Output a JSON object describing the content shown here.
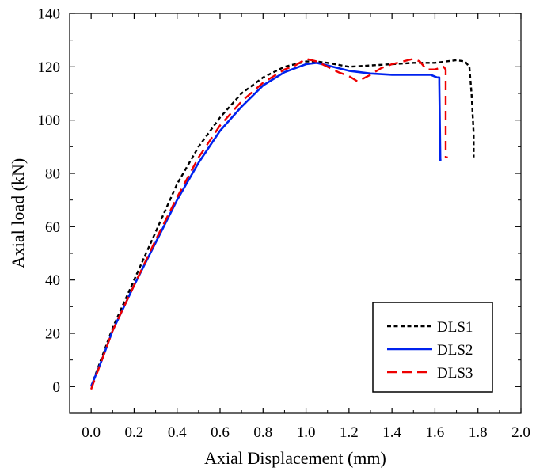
{
  "chart_data": {
    "type": "line",
    "title": "",
    "xlabel": "Axial Displacement (mm)",
    "ylabel": "Axial load (kN)",
    "xlim": [
      -0.1,
      2.0
    ],
    "ylim": [
      -10,
      140
    ],
    "x_ticks": [
      "0.0",
      "0.2",
      "0.4",
      "0.6",
      "0.8",
      "1.0",
      "1.2",
      "1.4",
      "1.6",
      "1.8",
      "2.0"
    ],
    "y_ticks": [
      "0",
      "20",
      "40",
      "60",
      "80",
      "100",
      "120",
      "140"
    ],
    "grid": false,
    "legend_position": "bottom-right",
    "series": [
      {
        "name": "DLS1",
        "color": "#000000",
        "dash": "short-dash",
        "x": [
          0.0,
          0.05,
          0.1,
          0.2,
          0.3,
          0.4,
          0.5,
          0.6,
          0.7,
          0.8,
          0.9,
          1.0,
          1.05,
          1.1,
          1.2,
          1.3,
          1.4,
          1.5,
          1.6,
          1.7,
          1.74,
          1.76,
          1.77,
          1.78,
          1.78
        ],
        "y": [
          0,
          11,
          22,
          40,
          58,
          76,
          90,
          101,
          110,
          116,
          120,
          122,
          122,
          121.5,
          120,
          120.5,
          121,
          121.5,
          121.5,
          122.5,
          122,
          120,
          110,
          95,
          86
        ]
      },
      {
        "name": "DLS2",
        "color": "#0022ee",
        "dash": "solid",
        "x": [
          0.0,
          0.05,
          0.1,
          0.2,
          0.3,
          0.4,
          0.5,
          0.6,
          0.7,
          0.8,
          0.9,
          1.0,
          1.05,
          1.1,
          1.2,
          1.3,
          1.4,
          1.5,
          1.58,
          1.61,
          1.62,
          1.62,
          1.625,
          1.63
        ],
        "y": [
          0,
          10,
          21,
          38,
          54,
          70,
          84,
          96,
          105,
          113,
          118,
          121,
          121.5,
          120.5,
          118.5,
          117.5,
          117,
          117,
          117,
          116,
          116,
          114,
          85,
          85
        ]
      },
      {
        "name": "DLS3",
        "color": "#ee0000",
        "dash": "long-dash",
        "x": [
          0.0,
          0.05,
          0.1,
          0.2,
          0.3,
          0.4,
          0.5,
          0.6,
          0.7,
          0.8,
          0.9,
          0.95,
          1.0,
          1.05,
          1.1,
          1.15,
          1.2,
          1.24,
          1.3,
          1.35,
          1.4,
          1.45,
          1.5,
          1.53,
          1.56,
          1.6,
          1.64,
          1.65,
          1.65,
          1.66
        ],
        "y": [
          -1,
          10,
          21,
          38,
          55,
          71,
          86,
          98,
          107,
          114,
          119,
          120.5,
          123,
          122,
          120,
          118,
          116.5,
          114.5,
          117,
          119.5,
          121,
          122,
          123,
          122,
          119,
          119,
          120,
          119,
          86,
          86
        ]
      }
    ]
  }
}
